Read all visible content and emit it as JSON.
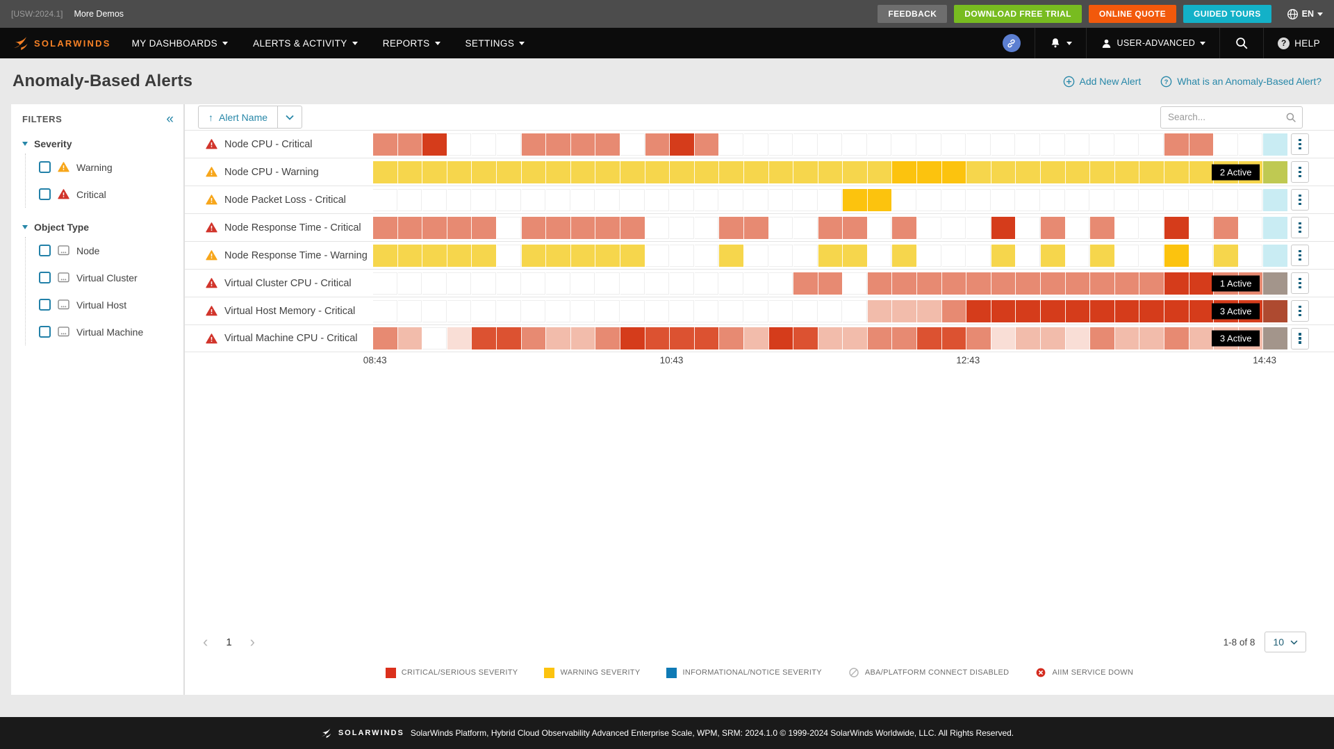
{
  "utility_bar": {
    "version": "[USW:2024.1]",
    "more_demos": "More Demos",
    "buttons": [
      {
        "label": "FEEDBACK",
        "color": "#6e6e6e"
      },
      {
        "label": "DOWNLOAD FREE TRIAL",
        "color": "#78bc20"
      },
      {
        "label": "ONLINE QUOTE",
        "color": "#f2590b"
      },
      {
        "label": "GUIDED TOURS",
        "color": "#13b1c8"
      }
    ],
    "lang": "EN"
  },
  "navbar": {
    "brand": "SOLARWINDS",
    "items": [
      "MY DASHBOARDS",
      "ALERTS & ACTIVITY",
      "REPORTS",
      "SETTINGS"
    ],
    "user_label": "USER-ADVANCED",
    "help_label": "HELP"
  },
  "page": {
    "title": "Anomaly-Based Alerts",
    "add_new": "Add New Alert",
    "what_is": "What is an Anomaly-Based Alert?"
  },
  "filters": {
    "title": "FILTERS",
    "groups": [
      {
        "label": "Severity",
        "items": [
          {
            "label": "Warning",
            "icon": "warning"
          },
          {
            "label": "Critical",
            "icon": "critical"
          }
        ]
      },
      {
        "label": "Object Type",
        "items": [
          {
            "label": "Node",
            "icon": "node"
          },
          {
            "label": "Virtual Cluster",
            "icon": "node"
          },
          {
            "label": "Virtual Host",
            "icon": "node"
          },
          {
            "label": "Virtual Machine",
            "icon": "node"
          }
        ]
      }
    ]
  },
  "toolbar": {
    "sort_label": "Alert Name",
    "search_placeholder": "Search..."
  },
  "chart_data": {
    "type": "heatmap",
    "cells_per_row": 37,
    "bucket_minutes": 10,
    "x_ticks": [
      "08:43",
      "10:43",
      "12:43",
      "14:43"
    ],
    "tick_cells": [
      0,
      12,
      24,
      36
    ],
    "color_tokens": {
      "W": "#ffffff",
      "S": "#e78a72",
      "R": "#d53c1b",
      "D": "#dc5231",
      "P": "#f2bcab",
      "Q": "#f9ded6",
      "Y": "#f6d64c",
      "G": "#fcc30e",
      "C": "#c9ecf3",
      "L": "#bfc952",
      "T": "#a3958b",
      "B": "#ae4a30"
    },
    "rows": [
      {
        "name": "Node CPU - Critical",
        "icon": "critical",
        "badge": null,
        "cells": "SSRWWWSSSSWSRSWWWWWWWWWWWWWWWWWWSSWWC"
      },
      {
        "name": "Node CPU - Warning",
        "icon": "warning",
        "badge": "2 Active",
        "cells": "YYYYYYYYYYYYYYYYYYYYYGGGYYYYYYYYYYYYL"
      },
      {
        "name": "Node Packet Loss - Critical",
        "icon": "warning",
        "badge": null,
        "cells": "WWWWWWWWWWWWWWWWWWWGGWWWWWWWWWWWWWWWC"
      },
      {
        "name": "Node Response Time - Critical",
        "icon": "critical",
        "badge": null,
        "cells": "SSSSSWSSSSSWWWSSWWSSWSWWWRWSWSWWRWSWC"
      },
      {
        "name": "Node Response Time - Warning",
        "icon": "warning",
        "badge": null,
        "cells": "YYYYYWYYYYYWWWYWWWYYWYWWWYWYWYWWGWYWC"
      },
      {
        "name": "Virtual Cluster CPU - Critical",
        "icon": "critical",
        "badge": "1 Active",
        "cells": "WWWWWWWWWWWWWWWWWSSWSSSSSSSSSSSSRRSST"
      },
      {
        "name": "Virtual Host Memory - Critical",
        "icon": "critical",
        "badge": "3 Active",
        "cells": "WWWWWWWWWWWWWWWWWWWWPPPSRRRRRRRRRRRRB"
      },
      {
        "name": "Virtual Machine CPU - Critical",
        "icon": "critical",
        "badge": "3 Active",
        "cells": "SPWQDDSPPSRDDDSPRDPPSSDDSQPPQSPPSPPPT"
      }
    ]
  },
  "pagination": {
    "page": "1",
    "range": "1-8 of 8",
    "page_size": "10"
  },
  "legend": [
    {
      "label": "CRITICAL/SERIOUS SEVERITY",
      "swatch": "square",
      "color": "#db301c"
    },
    {
      "label": "WARNING SEVERITY",
      "swatch": "square",
      "color": "#fcc30e"
    },
    {
      "label": "INFORMATIONAL/NOTICE SEVERITY",
      "swatch": "square",
      "color": "#0f7ab5"
    },
    {
      "label": "ABA/PLATFORM CONNECT DISABLED",
      "swatch": "disabled",
      "color": "#b5b5b5"
    },
    {
      "label": "AIIM SERVICE DOWN",
      "swatch": "down",
      "color": "#d42b1e"
    }
  ],
  "footer": {
    "brand": "SOLARWINDS",
    "text": "SolarWinds Platform, Hybrid Cloud Observability Advanced Enterprise Scale, WPM, SRM: 2024.1.0 © 1999-2024 SolarWinds Worldwide, LLC. All Rights Reserved."
  }
}
